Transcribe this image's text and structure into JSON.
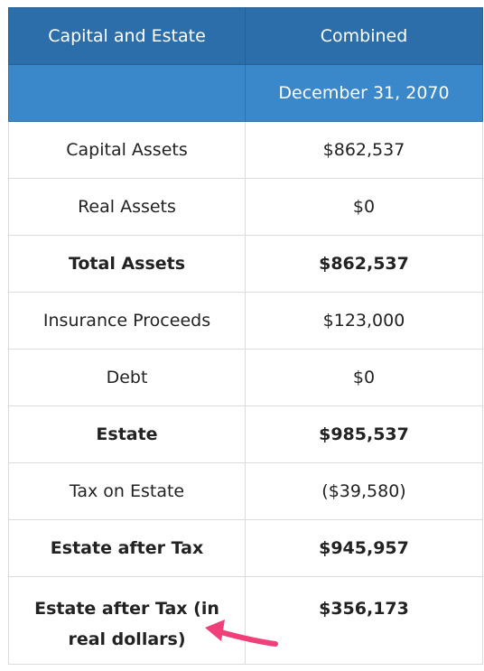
{
  "header": {
    "col1": "Capital and Estate",
    "col2": "Combined",
    "date": "December 31, 2070"
  },
  "rows": [
    {
      "label": "Capital Assets",
      "value": "$862,537",
      "bold": false
    },
    {
      "label": "Real Assets",
      "value": "$0",
      "bold": false
    },
    {
      "label": "Total Assets",
      "value": "$862,537",
      "bold": true
    },
    {
      "label": "Insurance Proceeds",
      "value": "$123,000",
      "bold": false
    },
    {
      "label": "Debt",
      "value": "$0",
      "bold": false
    },
    {
      "label": "Estate",
      "value": "$985,537",
      "bold": true
    },
    {
      "label": "Tax on Estate",
      "value": "($39,580)",
      "bold": false
    },
    {
      "label": "Estate after Tax",
      "value": "$945,957",
      "bold": true
    },
    {
      "label": "Estate after Tax (in real dollars)",
      "value": "$356,173",
      "bold": true
    }
  ],
  "colors": {
    "header_dark": "#2b6ea9",
    "header_light": "#3a87c9",
    "arrow": "#f0407a"
  },
  "icons": {
    "annotation": "arrow-icon"
  }
}
